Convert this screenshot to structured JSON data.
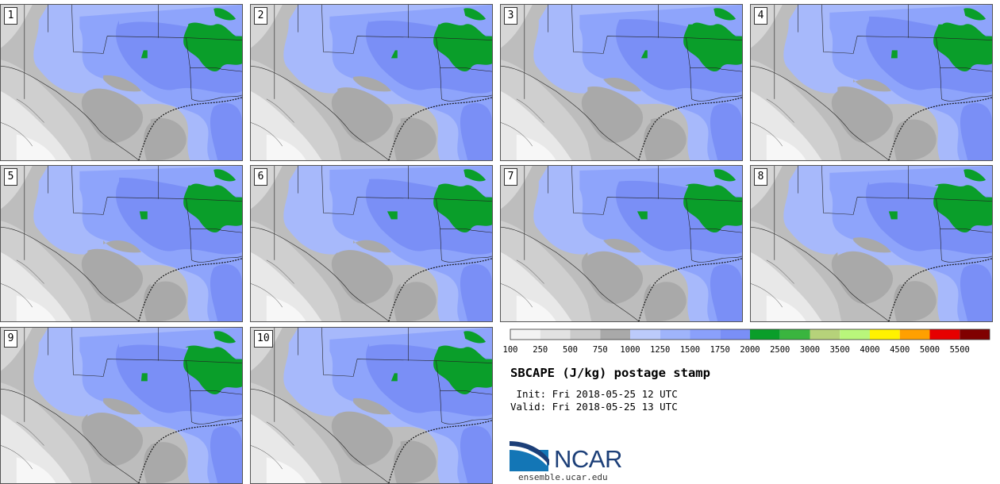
{
  "panels": [
    {
      "label": "1"
    },
    {
      "label": "2"
    },
    {
      "label": "3"
    },
    {
      "label": "4"
    },
    {
      "label": "5"
    },
    {
      "label": "6"
    },
    {
      "label": "7"
    },
    {
      "label": "8"
    },
    {
      "label": "9"
    },
    {
      "label": "10"
    }
  ],
  "colorbar": {
    "colors": [
      "#f3f3f3",
      "#e2e2e2",
      "#cacaca",
      "#a9a9a9",
      "#bccbfb",
      "#9fb4fb",
      "#8aa0fb",
      "#7a8ff6",
      "#0a9e2a",
      "#3ab53f",
      "#b6d27a",
      "#b9f67b",
      "#fff200",
      "#ffa000",
      "#e60000",
      "#800000"
    ],
    "tick_labels": [
      "100",
      "250",
      "500",
      "750",
      "1000",
      "1250",
      "1500",
      "1750",
      "2000",
      "2500",
      "3000",
      "3500",
      "4000",
      "4500",
      "5000",
      "5500"
    ]
  },
  "title": "SBCAPE (J/kg) postage stamp",
  "init_line": " Init: Fri 2018-05-25 12 UTC",
  "valid_line": "Valid: Fri 2018-05-25 13 UTC",
  "logo": {
    "text": "NCAR",
    "site": "ensemble.ucar.edu"
  }
}
